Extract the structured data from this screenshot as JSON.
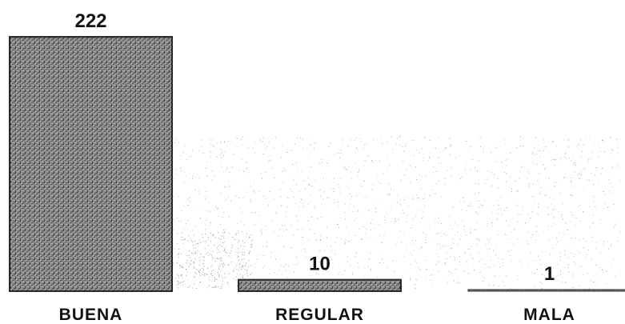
{
  "chart_data": {
    "type": "bar",
    "categories": [
      "BUENA",
      "REGULAR",
      "MALA"
    ],
    "values": [
      222,
      10,
      1
    ],
    "ylim": [
      0,
      222
    ],
    "grid": false,
    "legend": "none",
    "colors": {
      "bar_fill": "#7a7a7a",
      "bar_edge": "#2a2a2a",
      "speckle": "#8c8c8c"
    }
  }
}
